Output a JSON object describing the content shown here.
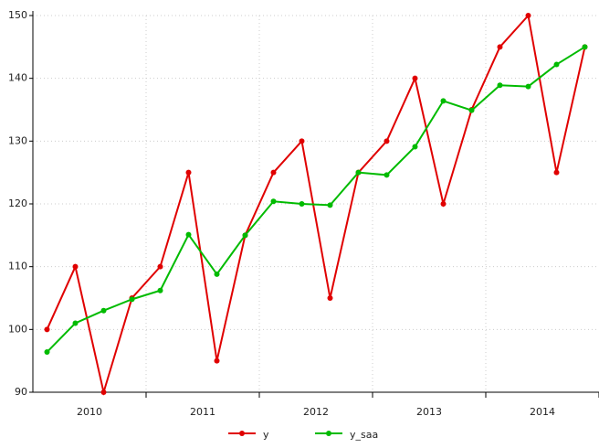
{
  "chart_data": {
    "type": "line",
    "categories": [
      "2010",
      null,
      null,
      null,
      "2011",
      null,
      null,
      null,
      "2012",
      null,
      null,
      null,
      "2013",
      null,
      null,
      null,
      "2014",
      null,
      null,
      null
    ],
    "series": [
      {
        "name": "y",
        "color": "#e00000",
        "values": [
          100,
          110,
          90,
          105,
          110,
          125,
          95,
          115,
          125,
          130,
          105,
          125,
          130,
          140,
          120,
          135,
          145,
          150,
          125,
          145
        ]
      },
      {
        "name": "y_saa",
        "color": "#00bb00",
        "values": [
          96.4,
          101,
          103,
          104.8,
          106.2,
          115.1,
          108.8,
          115,
          120.4,
          120,
          119.8,
          125,
          124.6,
          129.1,
          136.4,
          134.9,
          138.9,
          138.7,
          142.2,
          145
        ]
      }
    ],
    "ylim": [
      90,
      150
    ],
    "yticks": [
      90,
      100,
      110,
      120,
      130,
      140,
      150
    ],
    "grid": true,
    "legend": "bottom"
  }
}
